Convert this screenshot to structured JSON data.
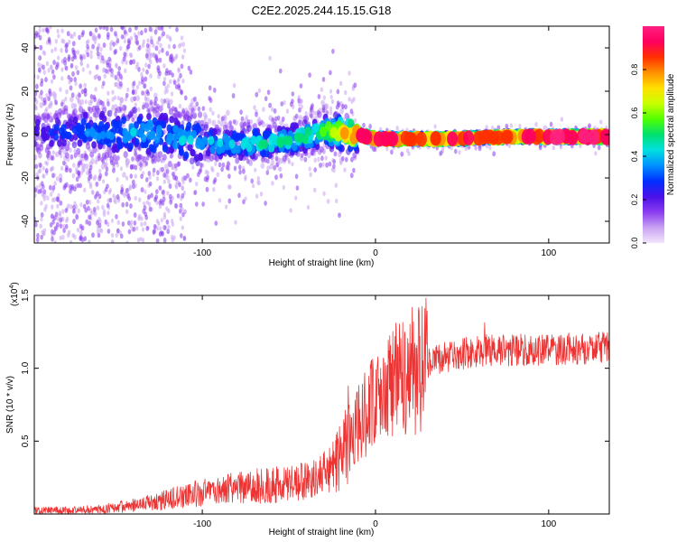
{
  "chart_data": [
    {
      "type": "heatmap",
      "title": "C2E2.2025.244.15.15.G18",
      "xlabel": "Height of straight line (km)",
      "ylabel": "Frequency (Hz)",
      "xlim": [
        -197,
        135
      ],
      "ylim": [
        -50,
        50
      ],
      "xticks": [
        -100,
        0,
        100
      ],
      "yticks": [
        -40,
        -20,
        0,
        20,
        40
      ],
      "colorbar": {
        "label": "Normalized spectral amplitude",
        "range": [
          0,
          1
        ],
        "ticks": [
          "0.0",
          "0.2",
          "0.4",
          "0.6",
          "0.8"
        ],
        "colors": [
          "#f2e6fb",
          "#c9a2f2",
          "#8a3cf0",
          "#4a10e8",
          "#0030ff",
          "#0090ff",
          "#00e0e0",
          "#00e070",
          "#50ff00",
          "#c8ff00",
          "#ffe000",
          "#ff9000",
          "#ff3000",
          "#ff0060",
          "#ff2080"
        ]
      },
      "ridge": [
        {
          "x": -190,
          "f": 1,
          "amp": 0.25
        },
        {
          "x": -160,
          "f": 1,
          "amp": 0.35
        },
        {
          "x": -130,
          "f": 1,
          "amp": 0.4
        },
        {
          "x": -110,
          "f": -2,
          "amp": 0.4
        },
        {
          "x": -90,
          "f": -4,
          "amp": 0.4
        },
        {
          "x": -70,
          "f": -4,
          "amp": 0.45
        },
        {
          "x": -50,
          "f": -3,
          "amp": 0.45
        },
        {
          "x": -30,
          "f": 2,
          "amp": 0.55
        },
        {
          "x": -20,
          "f": 1,
          "amp": 0.7
        },
        {
          "x": -10,
          "f": 0,
          "amp": 0.85
        },
        {
          "x": 0,
          "f": -2,
          "amp": 0.9
        },
        {
          "x": 40,
          "f": -2,
          "amp": 0.85
        },
        {
          "x": 80,
          "f": -1,
          "amp": 0.85
        },
        {
          "x": 110,
          "f": -1,
          "amp": 0.95
        },
        {
          "x": 135,
          "f": -1,
          "amp": 0.95
        }
      ]
    },
    {
      "type": "line",
      "xlabel": "Height of straight line (km)",
      "ylabel": "SNR (10 * v/v)",
      "y_scale_label": "(x10",
      "y_scale_exp": "4",
      "y_scale_close": ")",
      "xlim": [
        -197,
        135
      ],
      "ylim": [
        0,
        1.5
      ],
      "xticks": [
        -100,
        0,
        100
      ],
      "yticks": [
        "0.5",
        "1.0",
        "1.5"
      ],
      "color": "#ee3333",
      "trend": [
        {
          "x": -197,
          "y": 0.02
        },
        {
          "x": -160,
          "y": 0.03
        },
        {
          "x": -140,
          "y": 0.06
        },
        {
          "x": -120,
          "y": 0.1
        },
        {
          "x": -100,
          "y": 0.15
        },
        {
          "x": -80,
          "y": 0.18
        },
        {
          "x": -60,
          "y": 0.2
        },
        {
          "x": -40,
          "y": 0.22
        },
        {
          "x": -25,
          "y": 0.3
        },
        {
          "x": -15,
          "y": 0.5
        },
        {
          "x": -5,
          "y": 0.7
        },
        {
          "x": 5,
          "y": 0.85
        },
        {
          "x": 15,
          "y": 0.95
        },
        {
          "x": 25,
          "y": 1.0
        },
        {
          "x": 40,
          "y": 1.08
        },
        {
          "x": 60,
          "y": 1.12
        },
        {
          "x": 80,
          "y": 1.13
        },
        {
          "x": 100,
          "y": 1.12
        },
        {
          "x": 135,
          "y": 1.15
        }
      ]
    }
  ]
}
